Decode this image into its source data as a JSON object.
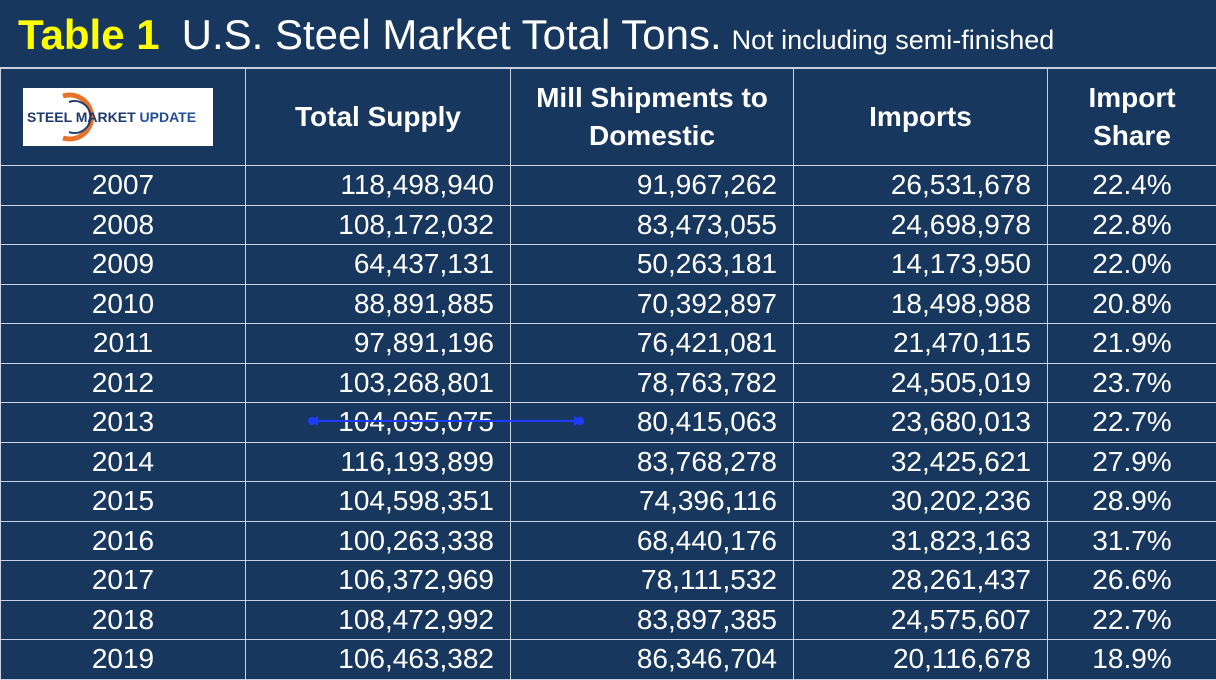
{
  "header": {
    "label": "Table 1",
    "title": "U.S. Steel Market Total Tons.",
    "note": "Not including semi-finished"
  },
  "logo": {
    "bold": "STEEL MARKET",
    "light": "UPDATE"
  },
  "table": {
    "columns": [
      "Total Supply",
      "Mill Shipments to Domestic",
      "Imports",
      "Import Share"
    ],
    "rows": [
      [
        "2007",
        "118,498,940",
        "91,967,262",
        "26,531,678",
        "22.4%"
      ],
      [
        "2008",
        "108,172,032",
        "83,473,055",
        "24,698,978",
        "22.8%"
      ],
      [
        "2009",
        "64,437,131",
        "50,263,181",
        "14,173,950",
        "22.0%"
      ],
      [
        "2010",
        "88,891,885",
        "70,392,897",
        "18,498,988",
        "20.8%"
      ],
      [
        "2011",
        "97,891,196",
        "76,421,081",
        "21,470,115",
        "21.9%"
      ],
      [
        "2012",
        "103,268,801",
        "78,763,782",
        "24,505,019",
        "23.7%"
      ],
      [
        "2013",
        "104,095,075",
        "80,415,063",
        "23,680,013",
        "22.7%"
      ],
      [
        "2014",
        "116,193,899",
        "83,768,278",
        "32,425,621",
        "27.9%"
      ],
      [
        "2015",
        "104,598,351",
        "74,396,116",
        "30,202,236",
        "28.9%"
      ],
      [
        "2016",
        "100,263,338",
        "68,440,176",
        "31,823,163",
        "31.7%"
      ],
      [
        "2017",
        "106,372,969",
        "78,111,532",
        "28,261,437",
        "26.6%"
      ],
      [
        "2018",
        "108,472,992",
        "83,897,385",
        "24,575,607",
        "22.7%"
      ],
      [
        "2019",
        "106,463,382",
        "86,346,704",
        "20,116,678",
        "18.9%"
      ]
    ]
  }
}
